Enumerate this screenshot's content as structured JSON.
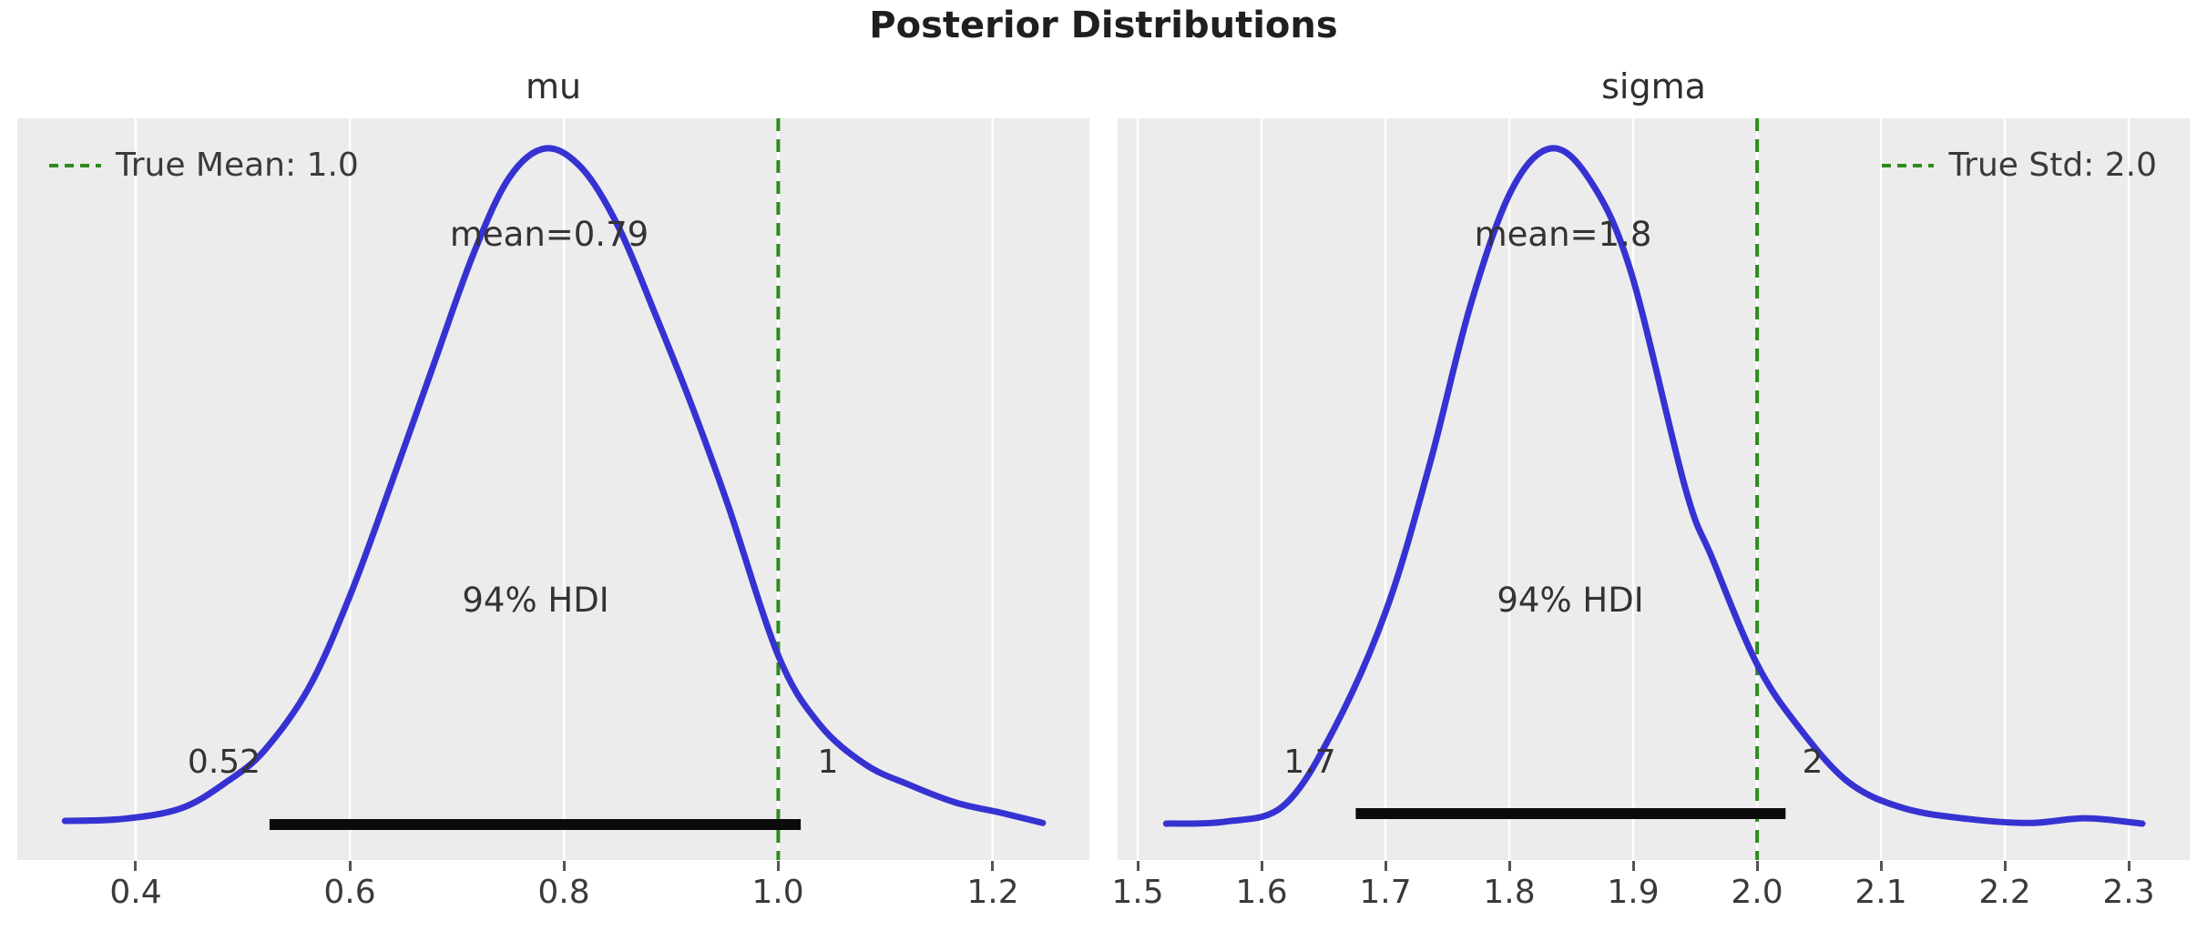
{
  "title": "Posterior Distributions",
  "colors": {
    "curve": "#3632d2",
    "true_value_line": "#2e8b1e",
    "hdi_bar": "#0b0b0b",
    "axes_background": "#ececec",
    "gridline": "#ffffff",
    "text": "#3a3a3a",
    "title_text": "#1f1f1f"
  },
  "chart_data": [
    {
      "type": "kde",
      "title": "mu",
      "legend_label": "True Mean: 1.0",
      "true_value": 1.0,
      "mean_label": "mean=0.79",
      "mean_value": 0.79,
      "mean_label_x": 0.786,
      "hdi": {
        "text": "94% HDI",
        "probability": 0.94,
        "lower": 0.52,
        "upper": 1.0,
        "lower_label": "0.52",
        "upper_label": "1",
        "bar_lower": 0.525,
        "bar_upper": 1.021
      },
      "xlim": [
        0.2895,
        1.2905
      ],
      "xticks": [
        0.4,
        0.6,
        0.8,
        1.0,
        1.2
      ],
      "xtick_labels": [
        "0.4",
        "0.6",
        "0.8",
        "1.0",
        "1.2"
      ],
      "grid": true,
      "legend_position": "top-left",
      "curve": {
        "x": [
          0.334,
          0.388,
          0.443,
          0.486,
          0.52,
          0.562,
          0.6,
          0.639,
          0.677,
          0.715,
          0.749,
          0.783,
          0.817,
          0.851,
          0.885,
          0.919,
          0.953,
          1.0,
          1.038,
          1.081,
          1.123,
          1.166,
          1.208,
          1.247
        ],
        "density": [
          0.004,
          0.007,
          0.023,
          0.063,
          0.108,
          0.202,
          0.337,
          0.505,
          0.674,
          0.842,
          0.957,
          1.0,
          0.97,
          0.883,
          0.755,
          0.62,
          0.472,
          0.249,
          0.148,
          0.088,
          0.057,
          0.031,
          0.016,
          0.001
        ]
      }
    },
    {
      "type": "kde",
      "title": "sigma",
      "legend_label": "True Std: 2.0",
      "true_value": 2.0,
      "mean_label": "mean=1.8",
      "mean_value": 1.8,
      "mean_label_x": 1.843,
      "hdi": {
        "text": "94% HDI",
        "probability": 0.94,
        "lower": 1.7,
        "upper": 2.0,
        "lower_label": "1.7",
        "upper_label": "2",
        "bar_lower": 1.676,
        "bar_upper": 2.023
      },
      "xlim": [
        1.4838,
        2.3492
      ],
      "xticks": [
        1.5,
        1.6,
        1.7,
        1.8,
        1.9,
        2.0,
        2.1,
        2.2,
        2.3
      ],
      "xtick_labels": [
        "1.5",
        "1.6",
        "1.7",
        "1.8",
        "1.9",
        "2.0",
        "2.1",
        "2.2",
        "2.3"
      ],
      "grid": true,
      "legend_position": "top-right",
      "curve": {
        "x": [
          1.523,
          1.571,
          1.618,
          1.659,
          1.701,
          1.736,
          1.769,
          1.802,
          1.834,
          1.865,
          1.898,
          1.942,
          1.964,
          2.0,
          2.034,
          2.074,
          2.118,
          2.17,
          2.221,
          2.265,
          2.311
        ],
        "density": [
          0.0,
          0.003,
          0.027,
          0.142,
          0.318,
          0.534,
          0.77,
          0.939,
          1.0,
          0.953,
          0.818,
          0.497,
          0.392,
          0.236,
          0.142,
          0.061,
          0.023,
          0.007,
          0.001,
          0.008,
          0.0
        ]
      }
    }
  ]
}
